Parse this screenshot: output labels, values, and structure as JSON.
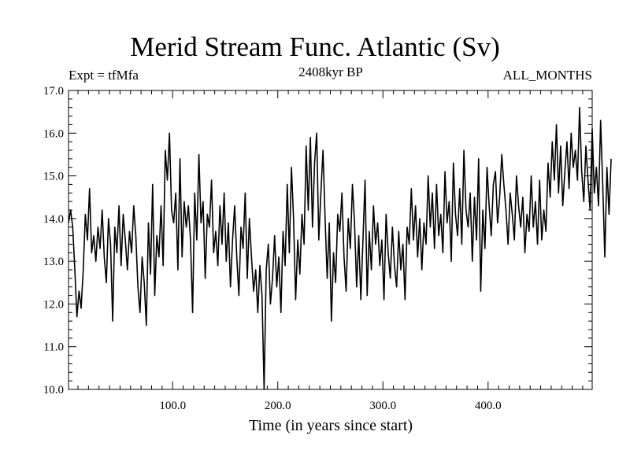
{
  "header": {
    "title": "Merid Stream Func. Atlantic (Sv)",
    "experiment": "Expt = tfMfa",
    "period": "2408kyr BP",
    "months": "ALL_MONTHS"
  },
  "chart_data": {
    "type": "line",
    "title": "Merid Stream Func. Atlantic (Sv)",
    "xlabel": "Time (in years since start)",
    "ylabel": "",
    "xlim": [
      1,
      499
    ],
    "ylim": [
      10.0,
      17.0
    ],
    "x_ticks": [
      100,
      200,
      300,
      400
    ],
    "x_tick_labels": [
      "100.0",
      "200.0",
      "300.0",
      "400.0"
    ],
    "y_ticks": [
      10,
      11,
      12,
      13,
      14,
      15,
      16,
      17
    ],
    "y_tick_labels": [
      "10.0",
      "11.0",
      "12.0",
      "13.0",
      "14.0",
      "15.0",
      "16.0",
      "17.0"
    ],
    "series": [
      {
        "name": "Merid Stream Func. Atlantic",
        "x_start": 1,
        "x_step": 2,
        "values": [
          13.9,
          14.2,
          13.8,
          12.8,
          11.7,
          12.3,
          11.9,
          12.8,
          14.1,
          13.5,
          14.7,
          13.2,
          13.6,
          13.0,
          13.8,
          13.3,
          14.2,
          13.1,
          12.5,
          14.0,
          13.4,
          11.6,
          13.8,
          13.2,
          14.3,
          12.9,
          14.1,
          13.5,
          12.8,
          13.7,
          13.2,
          14.3,
          13.6,
          12.4,
          11.8,
          13.1,
          12.5,
          11.5,
          13.9,
          12.7,
          14.8,
          12.2,
          13.6,
          13.1,
          14.3,
          12.9,
          15.6,
          14.9,
          16.0,
          14.2,
          13.9,
          14.6,
          12.8,
          15.4,
          13.1,
          14.4,
          13.8,
          14.3,
          13.5,
          11.8,
          14.6,
          13.5,
          15.5,
          13.9,
          14.4,
          12.6,
          14.1,
          13.8,
          14.9,
          13.2,
          13.7,
          12.9,
          14.3,
          13.4,
          14.6,
          13.0,
          13.9,
          12.4,
          13.5,
          14.3,
          13.1,
          12.2,
          13.8,
          13.3,
          14.6,
          12.6,
          14.0,
          13.1,
          12.3,
          12.8,
          11.8,
          12.9,
          12.2,
          10.0,
          12.8,
          13.4,
          12.0,
          12.6,
          13.6,
          12.4,
          13.1,
          11.8,
          13.7,
          12.9,
          14.8,
          13.2,
          15.2,
          14.0,
          12.1,
          13.5,
          12.7,
          14.1,
          13.4,
          15.7,
          14.2,
          15.9,
          13.8,
          15.3,
          16.0,
          13.5,
          14.6,
          15.6,
          14.0,
          12.6,
          13.9,
          11.6,
          13.2,
          12.5,
          14.1,
          13.7,
          14.6,
          13.1,
          12.3,
          14.0,
          13.3,
          14.8,
          13.9,
          12.4,
          13.6,
          12.1,
          13.5,
          14.9,
          12.2,
          13.7,
          12.8,
          14.3,
          13.4,
          13.9,
          12.9,
          13.5,
          12.1,
          14.1,
          13.2,
          12.6,
          13.8,
          12.9,
          12.4,
          13.7,
          12.8,
          13.4,
          12.1,
          13.8,
          13.4,
          14.7,
          13.5,
          14.3,
          13.1,
          14.0,
          12.8,
          13.9,
          13.4,
          15.0,
          13.8,
          14.6,
          13.3,
          14.8,
          13.6,
          14.1,
          13.2,
          15.1,
          13.9,
          14.4,
          13.0,
          15.3,
          14.1,
          13.6,
          14.7,
          13.4,
          15.6,
          14.2,
          13.8,
          14.6,
          13.0,
          14.5,
          13.5,
          15.4,
          12.3,
          14.2,
          13.3,
          15.2,
          14.3,
          13.6,
          14.8,
          15.1,
          13.9,
          14.5,
          15.5,
          14.8,
          14.2,
          13.4,
          14.6,
          14.1,
          13.5,
          15.0,
          14.3,
          13.8,
          14.5,
          13.2,
          14.1,
          13.7,
          15.0,
          13.8,
          14.4,
          13.4,
          14.9,
          13.5,
          14.2,
          13.7,
          15.3,
          14.5,
          15.8,
          14.9,
          16.2,
          14.6,
          15.7,
          14.3,
          15.1,
          15.8,
          14.7,
          16.0,
          15.2,
          15.6,
          14.9,
          16.6,
          15.1,
          14.4,
          15.7,
          14.9,
          14.2,
          16.1,
          14.6,
          15.2,
          14.3,
          16.3,
          14.8,
          13.1,
          15.2,
          14.1,
          15.4
        ]
      }
    ]
  }
}
